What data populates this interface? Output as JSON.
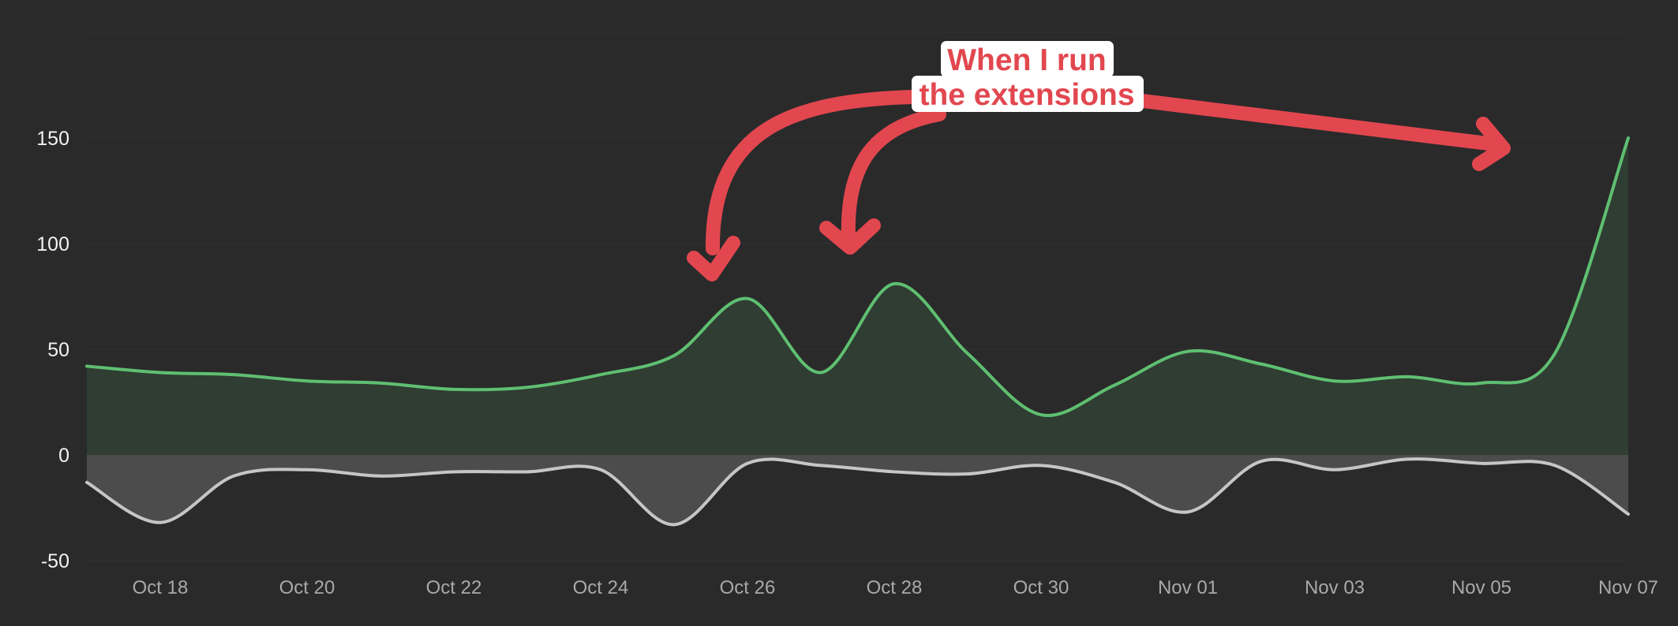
{
  "chart_data": {
    "type": "area",
    "x": [
      "Oct 17",
      "Oct 18",
      "Oct 19",
      "Oct 20",
      "Oct 21",
      "Oct 22",
      "Oct 23",
      "Oct 24",
      "Oct 25",
      "Oct 26",
      "Oct 27",
      "Oct 28",
      "Oct 29",
      "Oct 30",
      "Oct 31",
      "Nov 01",
      "Nov 02",
      "Nov 03",
      "Nov 04",
      "Nov 05",
      "Nov 06",
      "Nov 07"
    ],
    "x_tick_labels": [
      "Oct 18",
      "Oct 20",
      "Oct 22",
      "Oct 24",
      "Oct 26",
      "Oct 28",
      "Oct 30",
      "Nov 01",
      "Nov 03",
      "Nov 05",
      "Nov 07"
    ],
    "y_tick_labels": [
      "-50",
      "0",
      "50",
      "100",
      "150"
    ],
    "ylim": [
      -50,
      200
    ],
    "grid": true,
    "series": [
      {
        "color": "#5fbf71",
        "fill": "#2f3d32",
        "values": [
          42,
          39,
          38,
          35,
          34,
          31,
          32,
          38,
          47,
          74,
          39,
          81,
          48,
          19,
          33,
          49,
          43,
          35,
          37,
          34,
          48,
          150
        ]
      },
      {
        "color": "#c6c6c6",
        "fill": "#4c4c4c",
        "values": [
          -13,
          -32,
          -10,
          -7,
          -10,
          -8,
          -8,
          -7,
          -33,
          -4,
          -5,
          -8,
          -9,
          -5,
          -13,
          -27,
          -3,
          -7,
          -2,
          -4,
          -5,
          -28
        ]
      }
    ],
    "annotation": {
      "text_lines": [
        "When I run",
        "the extensions"
      ],
      "color": "#e2474f"
    }
  }
}
